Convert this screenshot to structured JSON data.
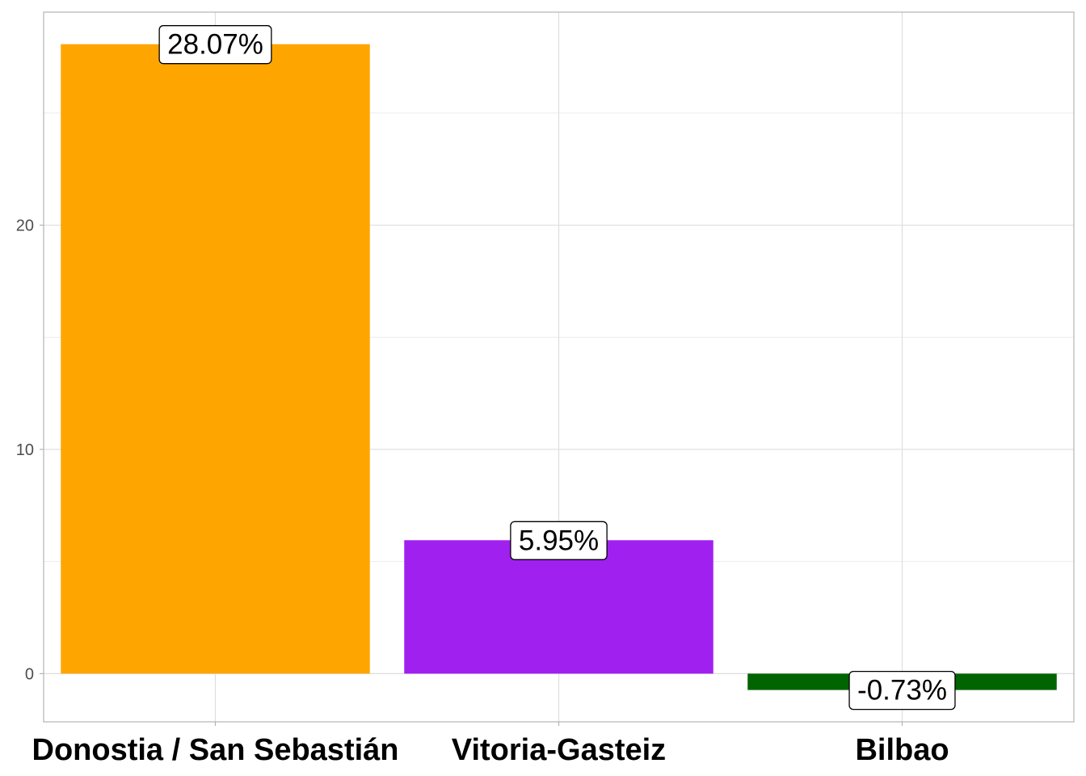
{
  "chart_data": {
    "type": "bar",
    "categories": [
      "Donostia / San Sebastián",
      "Vitoria-Gasteiz",
      "Bilbao"
    ],
    "values": [
      28.07,
      5.95,
      -0.73
    ],
    "data_labels": [
      "28.07%",
      "5.95%",
      "-0.73%"
    ],
    "bar_colors": [
      "#FFA500",
      "#A020F0",
      "#006400"
    ],
    "title": "",
    "xlabel": "",
    "ylabel": "",
    "ylim": [
      -2.15,
      29.5
    ],
    "y_ticks": [
      0,
      10,
      20
    ],
    "y_tick_labels": [
      "0",
      "10",
      "20"
    ],
    "grid": true,
    "legend": "none"
  }
}
